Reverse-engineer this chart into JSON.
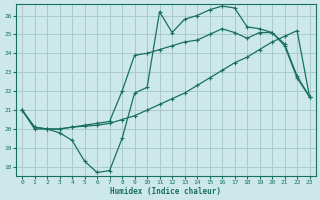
{
  "xlabel": "Humidex (Indice chaleur)",
  "bg_color": "#cce8e8",
  "grid_color": "#aacaca",
  "line_color": "#1a7060",
  "xlim": [
    -0.5,
    23.5
  ],
  "ylim": [
    17.5,
    26.6
  ],
  "xticks": [
    0,
    1,
    2,
    3,
    4,
    5,
    6,
    7,
    8,
    9,
    10,
    11,
    12,
    13,
    14,
    15,
    16,
    17,
    18,
    19,
    20,
    21,
    22,
    23
  ],
  "yticks": [
    18,
    19,
    20,
    21,
    22,
    23,
    24,
    25,
    26
  ],
  "line1_x": [
    0,
    1,
    2,
    3,
    4,
    5,
    6,
    7,
    8,
    9,
    10,
    11,
    12,
    13,
    14,
    15,
    16,
    17,
    18,
    19,
    20,
    21,
    22,
    23
  ],
  "line1_y": [
    21.0,
    20.0,
    20.0,
    19.8,
    19.4,
    18.3,
    17.7,
    17.8,
    19.5,
    21.9,
    22.2,
    26.2,
    25.1,
    25.8,
    26.0,
    26.3,
    26.5,
    26.4,
    25.4,
    25.3,
    25.1,
    24.5,
    22.8,
    21.7
  ],
  "line2_x": [
    0,
    1,
    2,
    3,
    4,
    5,
    6,
    7,
    8,
    9,
    10,
    11,
    12,
    13,
    14,
    15,
    16,
    17,
    18,
    19,
    20,
    21,
    22,
    23
  ],
  "line2_y": [
    21.0,
    20.1,
    20.0,
    20.0,
    20.1,
    20.15,
    20.2,
    20.3,
    20.5,
    20.7,
    21.0,
    21.3,
    21.6,
    21.9,
    22.3,
    22.7,
    23.1,
    23.5,
    23.8,
    24.2,
    24.6,
    24.9,
    25.2,
    21.7
  ],
  "line3_x": [
    0,
    1,
    2,
    3,
    4,
    5,
    6,
    7,
    8,
    9,
    10,
    11,
    12,
    13,
    14,
    15,
    16,
    17,
    18,
    19,
    20,
    21,
    22,
    23
  ],
  "line3_y": [
    21.0,
    20.1,
    20.0,
    20.0,
    20.1,
    20.2,
    20.3,
    20.4,
    22.0,
    23.9,
    24.0,
    24.2,
    24.4,
    24.6,
    24.7,
    25.0,
    25.3,
    25.1,
    24.8,
    25.1,
    25.1,
    24.4,
    22.7,
    21.7
  ]
}
